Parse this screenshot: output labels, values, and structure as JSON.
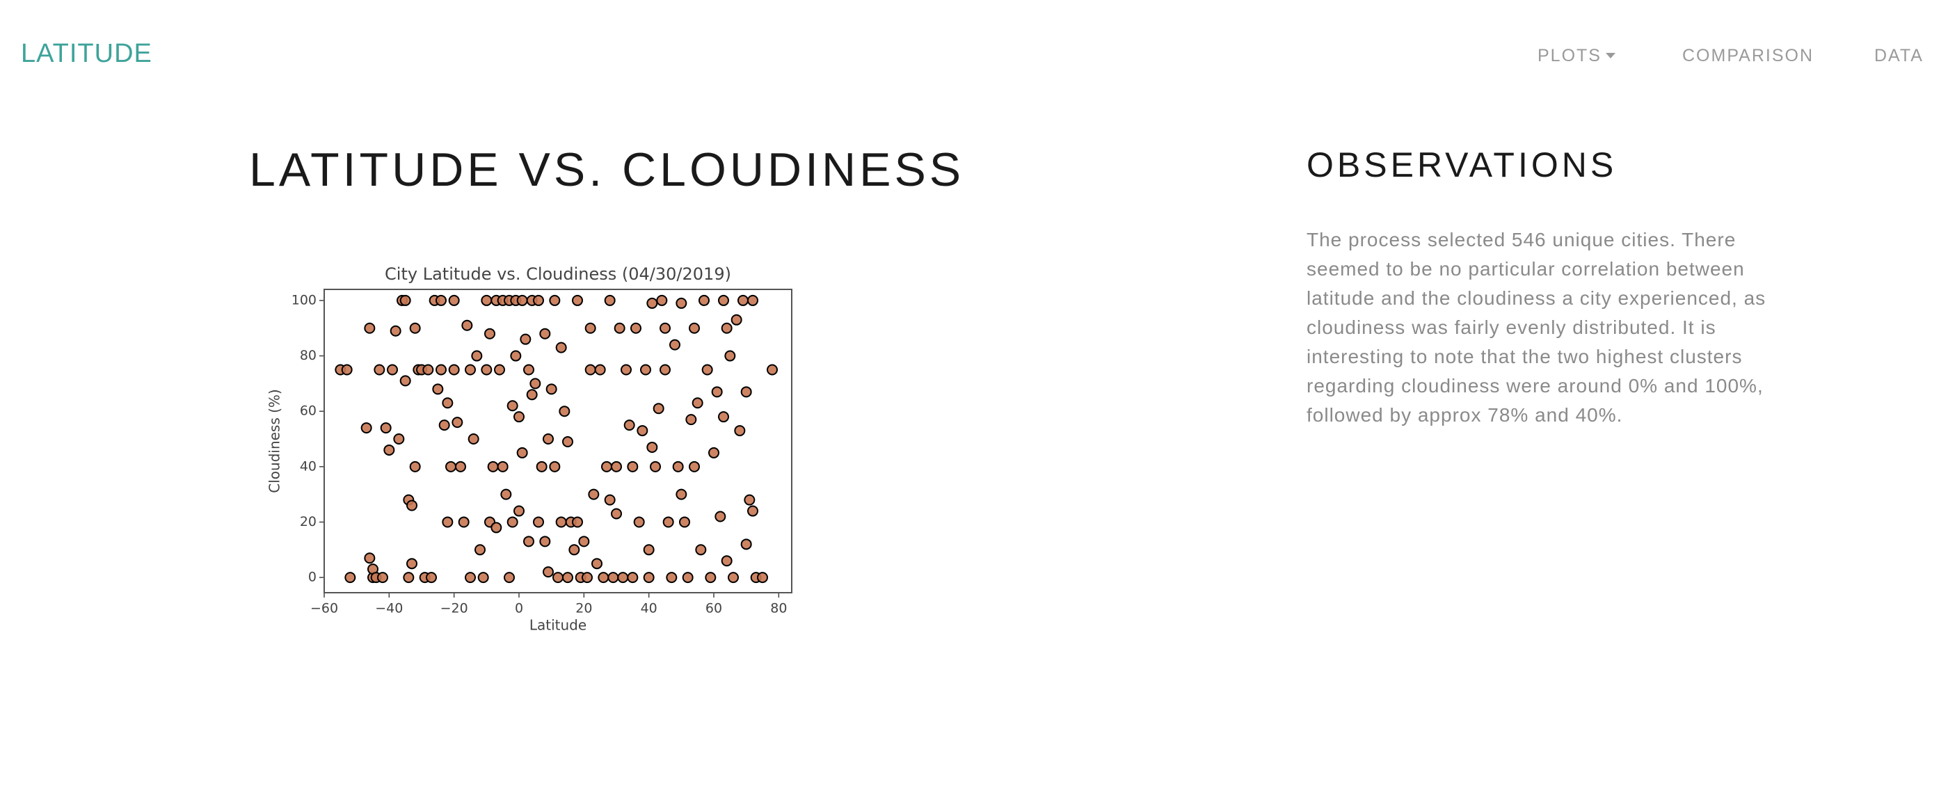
{
  "nav": {
    "brand": "LATITUDE",
    "links": [
      "PLOTS",
      "COMPARISON",
      "DATA"
    ]
  },
  "page": {
    "title": "LATITUDE VS. CLOUDINESS"
  },
  "observations": {
    "title": "OBSERVATIONS",
    "text": "The process selected 546 unique cities. There seemed to be no particular correlation between latitude and the cloudiness a city experienced, as cloudiness was fairly evenly distributed. It is interesting to note that the two highest clusters regarding cloudiness were around 0% and 100%, followed by approx 78% and 40%."
  },
  "chart_data": {
    "type": "scatter",
    "title": "City Latitude vs. Cloudiness (04/30/2019)",
    "x_label": "Latitude",
    "y_label": "Cloudiness (%)",
    "xlim": [
      -60,
      84
    ],
    "ylim": [
      -5.5,
      104
    ],
    "xticks": [
      {
        "value": -60,
        "label": "−60"
      },
      {
        "value": -40,
        "label": "−40"
      },
      {
        "value": -20,
        "label": "−20"
      },
      0,
      20,
      40,
      60,
      80
    ],
    "yticks": [
      0,
      20,
      40,
      60,
      80,
      100
    ],
    "color": "#c87752",
    "edgecolor": "#000000",
    "x": [
      -55,
      -53,
      -52,
      -47,
      -46,
      -46,
      -45,
      -45,
      -44,
      -43,
      -42,
      -41,
      -40,
      -39,
      -38,
      -37,
      -36,
      -35,
      -35,
      -34,
      -34,
      -33,
      -33,
      -32,
      -32,
      -31,
      -30,
      -29,
      -28,
      -27,
      -26,
      -25,
      -24,
      -24,
      -23,
      -22,
      -22,
      -21,
      -20,
      -20,
      -19,
      -18,
      -17,
      -16,
      -15,
      -15,
      -14,
      -13,
      -12,
      -11,
      -10,
      -10,
      -9,
      -9,
      -8,
      -7,
      -7,
      -6,
      -5,
      -5,
      -4,
      -3,
      -3,
      -2,
      -2,
      -1,
      -1,
      0,
      0,
      1,
      1,
      2,
      3,
      3,
      4,
      4,
      5,
      6,
      6,
      7,
      8,
      8,
      9,
      9,
      10,
      11,
      11,
      12,
      13,
      13,
      14,
      15,
      15,
      16,
      17,
      18,
      18,
      19,
      20,
      21,
      22,
      22,
      23,
      24,
      25,
      26,
      27,
      28,
      28,
      29,
      30,
      30,
      31,
      32,
      33,
      34,
      35,
      35,
      36,
      37,
      38,
      39,
      40,
      40,
      41,
      41,
      42,
      43,
      44,
      45,
      45,
      46,
      47,
      48,
      49,
      50,
      50,
      51,
      52,
      53,
      54,
      54,
      55,
      56,
      57,
      58,
      59,
      60,
      61,
      62,
      63,
      63,
      64,
      64,
      65,
      66,
      67,
      68,
      69,
      70,
      70,
      71,
      72,
      72,
      73,
      75,
      78
    ],
    "values": [
      75,
      75,
      0,
      54,
      90,
      7,
      0,
      3,
      0,
      75,
      0,
      54,
      46,
      75,
      89,
      50,
      100,
      100,
      71,
      0,
      28,
      26,
      5,
      40,
      90,
      75,
      75,
      0,
      75,
      0,
      100,
      68,
      100,
      75,
      55,
      63,
      20,
      40,
      100,
      75,
      56,
      40,
      20,
      91,
      75,
      0,
      50,
      80,
      10,
      0,
      100,
      75,
      88,
      20,
      40,
      100,
      18,
      75,
      100,
      40,
      30,
      100,
      0,
      62,
      20,
      100,
      80,
      24,
      58,
      100,
      45,
      86,
      13,
      75,
      100,
      66,
      70,
      20,
      100,
      40,
      88,
      13,
      50,
      2,
      68,
      100,
      40,
      0,
      83,
      20,
      60,
      49,
      0,
      20,
      10,
      100,
      20,
      0,
      13,
      0,
      90,
      75,
      30,
      5,
      75,
      0,
      40,
      100,
      28,
      0,
      40,
      23,
      90,
      0,
      75,
      55,
      40,
      0,
      90,
      20,
      53,
      75,
      10,
      0,
      99,
      47,
      40,
      61,
      100,
      90,
      75,
      20,
      0,
      84,
      40,
      30,
      99,
      20,
      0,
      57,
      90,
      40,
      63,
      10,
      100,
      75,
      0,
      45,
      67,
      22,
      100,
      58,
      90,
      6,
      80,
      0,
      93,
      53,
      100,
      12,
      67,
      28,
      100,
      24,
      0,
      0,
      75
    ]
  }
}
